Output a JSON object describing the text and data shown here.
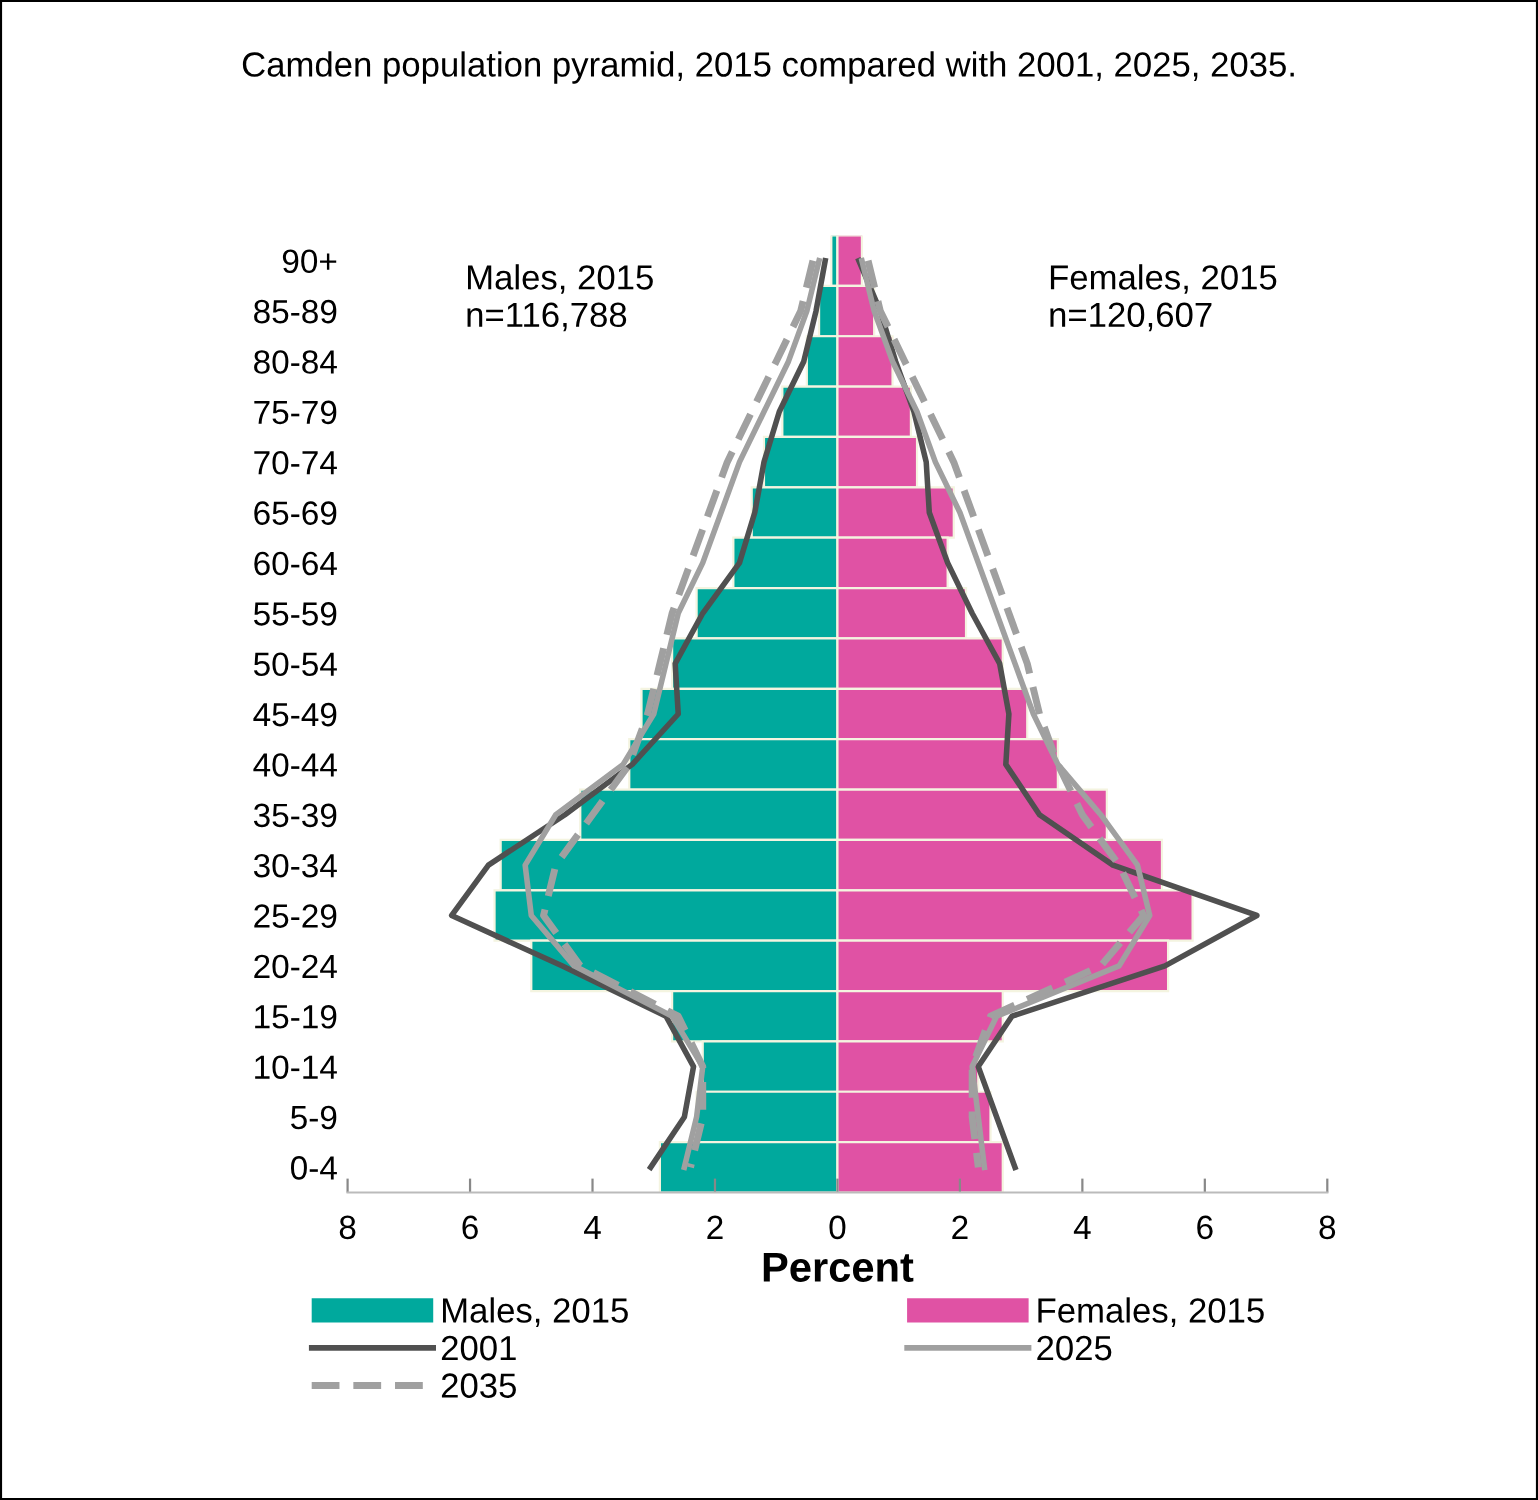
{
  "chart_data": {
    "type": "bar",
    "orientation": "horizontal",
    "stacked": true,
    "title": "Camden population pyramid, 2015 compared with 2001, 2025, 2035.",
    "xlabel": "Percent",
    "categories": [
      "90+",
      "85-89",
      "80-84",
      "75-79",
      "70-74",
      "65-69",
      "60-64",
      "55-59",
      "50-54",
      "45-49",
      "40-44",
      "35-39",
      "30-34",
      "25-29",
      "20-24",
      "15-19",
      "10-14",
      "5-9",
      "0-4"
    ],
    "xlim": [
      -8,
      8
    ],
    "xticks": [
      {
        "value": -8,
        "label": "8"
      },
      {
        "value": -6,
        "label": "6"
      },
      {
        "value": -4,
        "label": "4"
      },
      {
        "value": -2,
        "label": "2"
      },
      0,
      2,
      4,
      6,
      8
    ],
    "series": [
      {
        "name": "Males, 2015",
        "color": "#00a99d",
        "values": [
          -0.1,
          -0.3,
          -0.5,
          -0.9,
          -1.2,
          -1.4,
          -1.7,
          -2.3,
          -2.7,
          -3.2,
          -3.4,
          -4.2,
          -5.5,
          -5.6,
          -5.0,
          -2.7,
          -2.2,
          -2.3,
          -2.9
        ]
      },
      {
        "name": "Females, 2015",
        "color": "#e052a4",
        "values": [
          0.4,
          0.6,
          0.9,
          1.2,
          1.3,
          1.9,
          1.8,
          2.1,
          2.7,
          3.1,
          3.6,
          4.4,
          5.3,
          5.8,
          5.4,
          2.7,
          2.3,
          2.5,
          2.7
        ]
      },
      {
        "name": "2001",
        "type": "line",
        "color": "#505050",
        "line_style": "solid",
        "values": [
          -0.2,
          -0.35,
          -0.55,
          -0.95,
          -1.2,
          -1.35,
          -1.6,
          -2.2,
          -2.65,
          -2.6,
          -3.35,
          -4.45,
          -5.7,
          -6.3,
          -4.5,
          -2.8,
          -2.35,
          -2.5,
          -3.05
        ]
      },
      {
        "type": "line",
        "color": "#505050",
        "line_style": "solid",
        "values": [
          0.35,
          0.7,
          0.95,
          1.25,
          1.45,
          1.5,
          1.8,
          2.2,
          2.65,
          2.8,
          2.75,
          3.3,
          4.5,
          6.85,
          5.35,
          2.85,
          2.3,
          2.6,
          2.9
        ]
      },
      {
        "name": "2025",
        "type": "line",
        "color": "#a0a0a0",
        "line_style": "solid",
        "values": [
          -0.3,
          -0.5,
          -0.8,
          -1.2,
          -1.6,
          -1.9,
          -2.2,
          -2.6,
          -2.8,
          -3.0,
          -3.5,
          -4.6,
          -5.1,
          -5.0,
          -4.3,
          -2.7,
          -2.2,
          -2.3,
          -2.5
        ]
      },
      {
        "type": "line",
        "color": "#a0a0a0",
        "line_style": "solid",
        "values": [
          0.4,
          0.6,
          0.9,
          1.3,
          1.6,
          2.0,
          2.3,
          2.6,
          2.9,
          3.2,
          3.6,
          4.3,
          4.9,
          5.1,
          4.6,
          2.6,
          2.2,
          2.3,
          2.4
        ]
      },
      {
        "name": "2035",
        "type": "line",
        "color": "#a0a0a0",
        "line_style": "dashed",
        "values": [
          -0.4,
          -0.6,
          -1.0,
          -1.4,
          -1.8,
          -2.1,
          -2.4,
          -2.7,
          -2.9,
          -3.1,
          -3.4,
          -4.0,
          -4.6,
          -4.8,
          -4.2,
          -2.6,
          -2.2,
          -2.2,
          -2.4
        ]
      },
      {
        "type": "line",
        "color": "#a0a0a0",
        "line_style": "dashed",
        "values": [
          0.5,
          0.7,
          1.1,
          1.5,
          1.9,
          2.2,
          2.5,
          2.8,
          3.1,
          3.3,
          3.6,
          4.0,
          4.6,
          5.0,
          4.3,
          2.5,
          2.2,
          2.2,
          2.3
        ]
      }
    ],
    "annotations": [
      "Males, 2015\nn=116,788",
      "Females, 2015\nn=120,607"
    ],
    "grid": false,
    "legend": "bottom"
  }
}
